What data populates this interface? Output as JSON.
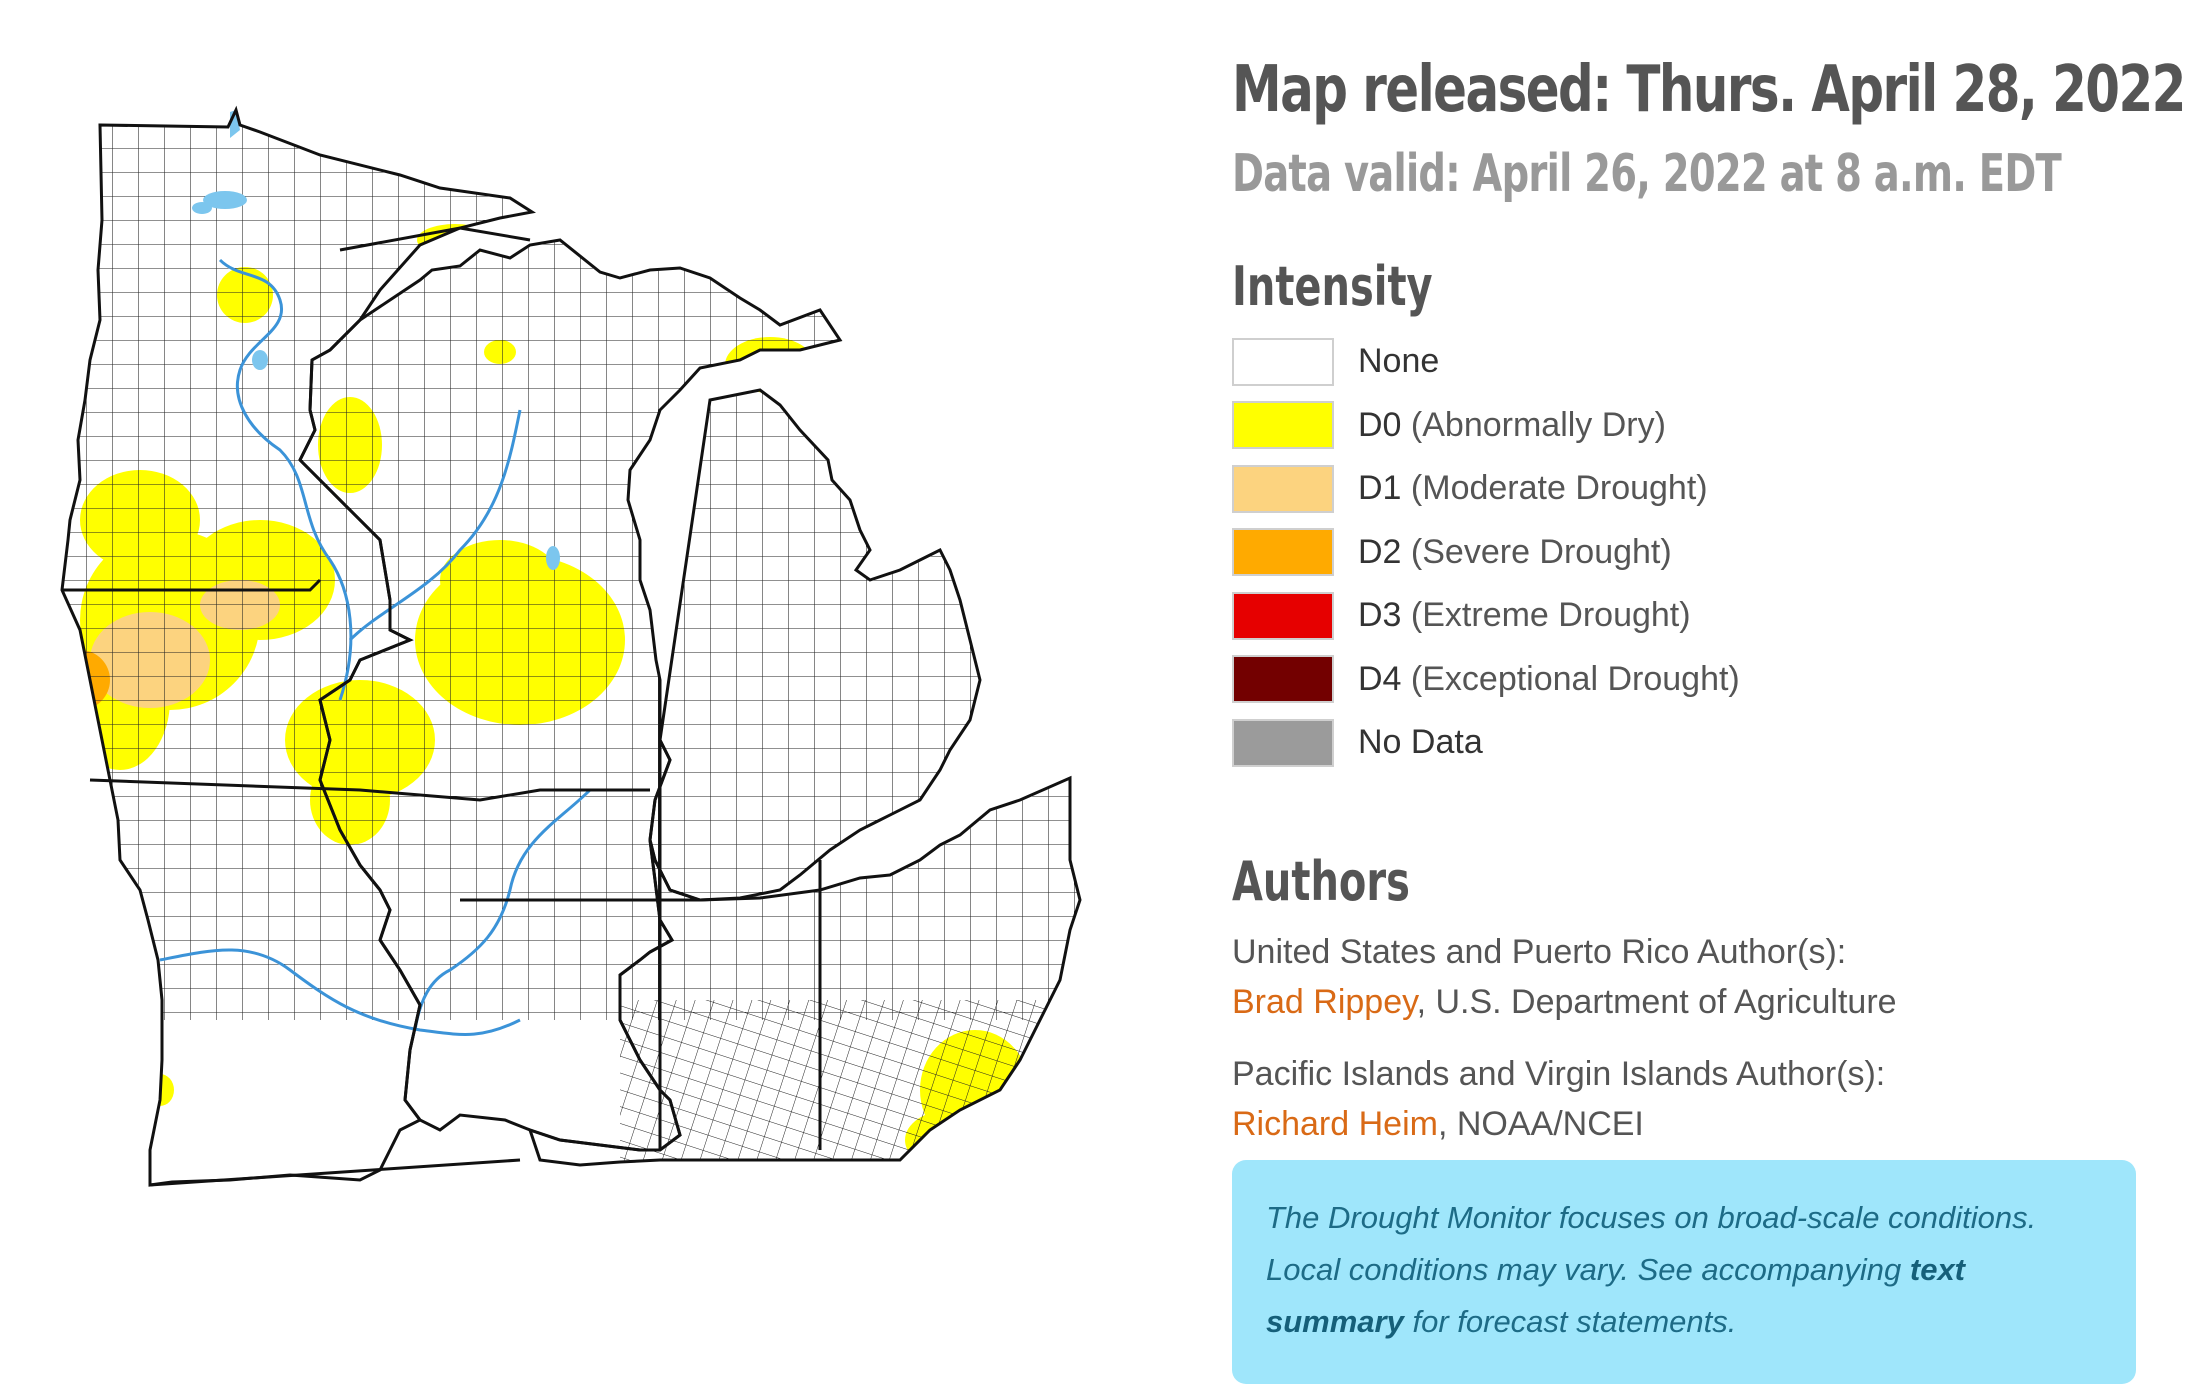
{
  "header": {
    "released": "Map released: Thurs. April 28, 2022",
    "valid": "Data valid: April 26, 2022 at 8 a.m. EDT"
  },
  "legend": {
    "title": "Intensity",
    "items": [
      {
        "code": "None",
        "desc": "",
        "color": "#ffffff"
      },
      {
        "code": "D0",
        "desc": "(Abnormally Dry)",
        "color": "#ffff00"
      },
      {
        "code": "D1",
        "desc": "(Moderate Drought)",
        "color": "#fcd37f"
      },
      {
        "code": "D2",
        "desc": "(Severe Drought)",
        "color": "#ffaa00"
      },
      {
        "code": "D3",
        "desc": "(Extreme Drought)",
        "color": "#e60000"
      },
      {
        "code": "D4",
        "desc": "(Exceptional Drought)",
        "color": "#730000"
      },
      {
        "code": "No Data",
        "desc": "",
        "color": "#9b9b9b"
      }
    ]
  },
  "authors": {
    "title": "Authors",
    "us_label": "United States and Puerto Rico Author(s):",
    "us_name": "Brad Rippey",
    "us_org": ", U.S. Department of Agriculture",
    "pi_label": "Pacific Islands and Virgin Islands Author(s):",
    "pi_name": "Richard Heim",
    "pi_org": ", NOAA/NCEI"
  },
  "note": {
    "text_before": "The Drought Monitor focuses on broad-scale conditions. Local conditions may vary. See accompanying ",
    "link": "text summary",
    "text_after": " for forecast statements."
  },
  "map": {
    "colors": {
      "water": "#7cc6ee",
      "river": "#3b93d8",
      "d0": "#ffff00",
      "d1": "#fcd37f",
      "d2": "#ffaa00"
    }
  }
}
